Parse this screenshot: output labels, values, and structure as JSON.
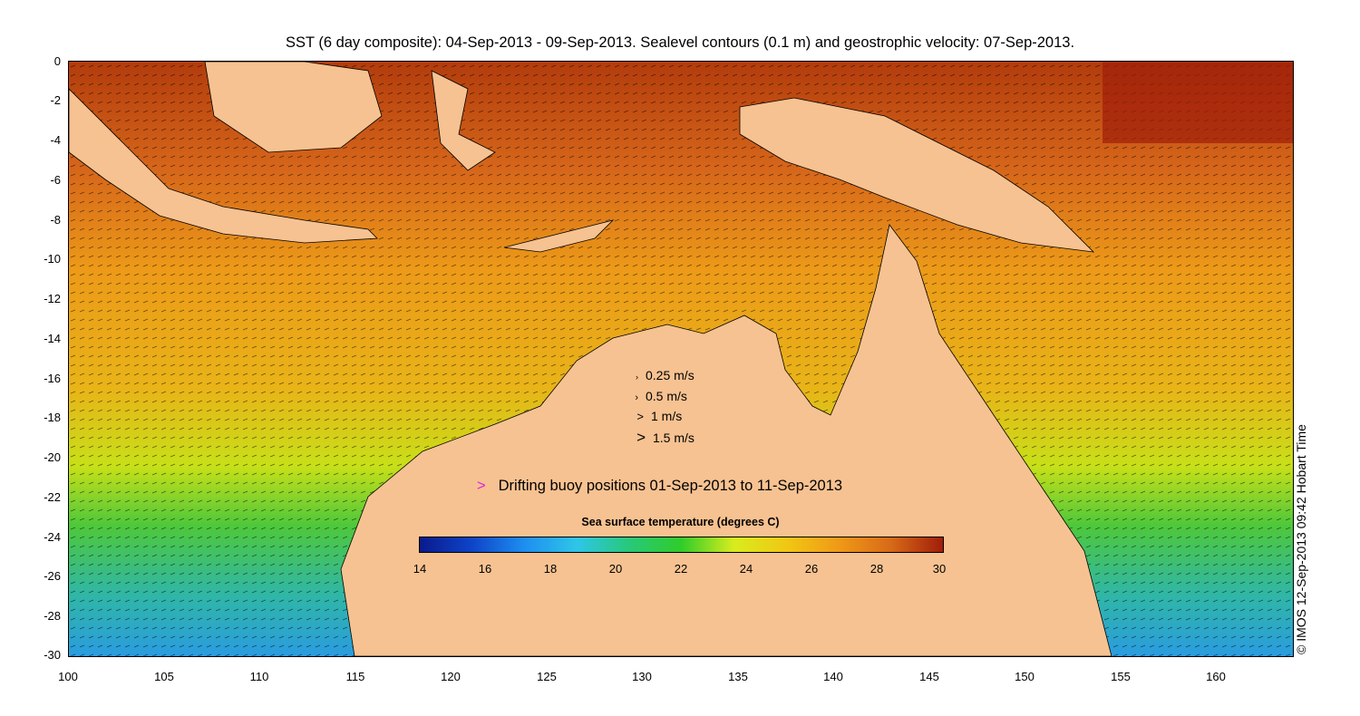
{
  "title": "SST (6 day composite): 04-Sep-2013 - 09-Sep-2013. Sealevel contours (0.1 m) and geostrophic velocity: 07-Sep-2013.",
  "credit": "© IMOS 12-Sep-2013 09:42 Hobart Time",
  "axes": {
    "x_ticks": [
      "100",
      "105",
      "110",
      "115",
      "120",
      "125",
      "130",
      "135",
      "140",
      "145",
      "150",
      "155",
      "160"
    ],
    "y_ticks": [
      "0",
      "-2",
      "-4",
      "-6",
      "-8",
      "-10",
      "-12",
      "-14",
      "-16",
      "-18",
      "-20",
      "-22",
      "-24",
      "-26",
      "-28",
      "-30"
    ],
    "xlim": [
      100,
      164
    ],
    "ylim": [
      -30,
      0
    ]
  },
  "velocity_legend": [
    {
      "arrow": "›",
      "label": "0.25 m/s"
    },
    {
      "arrow": "›",
      "label": "0.5 m/s"
    },
    {
      "arrow": ">",
      "label": "1 m/s"
    },
    {
      "arrow": ">",
      "label": "1.5 m/s"
    }
  ],
  "buoy_legend": {
    "marker": ">",
    "label": "Drifting buoy positions 01-Sep-2013 to 11-Sep-2013",
    "color": "#e020e0"
  },
  "colorbar": {
    "title": "Sea surface temperature (degrees C)",
    "ticks": [
      "14",
      "16",
      "18",
      "20",
      "22",
      "24",
      "26",
      "28",
      "30"
    ],
    "range": [
      14,
      30
    ]
  },
  "colors": {
    "land": "#f7c291",
    "buoy": "#e020e0"
  }
}
